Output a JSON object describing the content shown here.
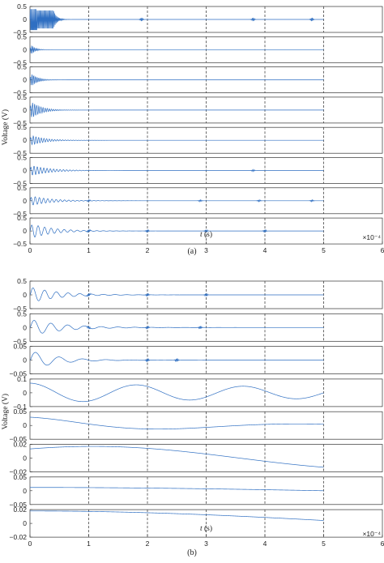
{
  "chart_data": [
    {
      "type": "line",
      "caption": "(a)",
      "xlabel_italic": "t",
      "xlabel_unit": " (s)",
      "ylabel": "Voltage (V)",
      "xlim": [
        0,
        6
      ],
      "xticks": [
        "0",
        "1",
        "2",
        "3",
        "4",
        "5",
        "6"
      ],
      "x_multiplier": "×10⁻⁴",
      "grid": "vertical-dashed",
      "series_color": "#2f6fc2",
      "signal_end_x": 5,
      "panels": [
        {
          "ylim": [
            -0.5,
            0.5
          ],
          "yticks": [
            "0.5",
            "0",
            "−0.5"
          ],
          "signal": "square-burst",
          "amplitude": 0.4,
          "decay": 0.4,
          "freq": 60,
          "echoes": [
            1.9,
            3.8,
            4.8
          ]
        },
        {
          "ylim": [
            -0.5,
            0.5
          ],
          "yticks": [
            "0.5",
            "0",
            "−0.5"
          ],
          "signal": "burst",
          "amplitude": 0.3,
          "decay": 0.06,
          "freq": 45,
          "echoes": []
        },
        {
          "ylim": [
            -0.5,
            0.5
          ],
          "yticks": [
            "0.5",
            "0",
            "−0.5"
          ],
          "signal": "burst",
          "amplitude": 0.35,
          "decay": 0.1,
          "freq": 35,
          "echoes": []
        },
        {
          "ylim": [
            -0.5,
            0.5
          ],
          "yticks": [
            "0.5",
            "0",
            "−0.5"
          ],
          "signal": "burst",
          "amplitude": 0.4,
          "decay": 0.16,
          "freq": 28,
          "echoes": []
        },
        {
          "ylim": [
            -0.5,
            0.5
          ],
          "yticks": [
            "0.5",
            "0",
            "−0.5"
          ],
          "signal": "burst",
          "amplitude": 0.22,
          "decay": 0.22,
          "freq": 22,
          "echoes": []
        },
        {
          "ylim": [
            -0.5,
            0.5
          ],
          "yticks": [
            "0.5",
            "0",
            "−0.5"
          ],
          "signal": "burst",
          "amplitude": 0.22,
          "decay": 0.3,
          "freq": 18,
          "echoes": [
            3.8
          ]
        },
        {
          "ylim": [
            -0.5,
            0.5
          ],
          "yticks": [
            "0.5",
            "0",
            "−0.5"
          ],
          "signal": "burst",
          "amplitude": 0.2,
          "decay": 0.32,
          "freq": 14,
          "echoes": [
            1.0,
            2.9,
            3.9,
            4.8
          ]
        },
        {
          "ylim": [
            -0.5,
            0.5
          ],
          "yticks": [
            "0.5",
            "0",
            "−0.5"
          ],
          "signal": "burst",
          "amplitude": 0.3,
          "decay": 0.35,
          "freq": 9,
          "echoes": [
            1.0,
            2.0,
            3.0,
            4.0
          ]
        }
      ]
    },
    {
      "type": "line",
      "caption": "(b)",
      "xlabel_italic": "t",
      "xlabel_unit": " (s)",
      "ylabel": "Voltage (V)",
      "xlim": [
        0,
        6
      ],
      "xticks": [
        "0",
        "1",
        "2",
        "3",
        "4",
        "5",
        "6"
      ],
      "x_multiplier": "×10⁻⁴",
      "grid": "vertical-dashed",
      "series_color": "#2f6fc2",
      "signal_end_x": 5,
      "panels": [
        {
          "ylim": [
            -0.5,
            0.5
          ],
          "yticks": [
            "0.5",
            "0",
            "−0.5"
          ],
          "signal": "burst",
          "amplitude": 0.3,
          "decay": 0.45,
          "freq": 5,
          "echoes": [
            1.0,
            2.0,
            3.0
          ]
        },
        {
          "ylim": [
            -0.5,
            0.5
          ],
          "yticks": [
            "0.5",
            "0",
            "−0.5"
          ],
          "signal": "burst",
          "amplitude": 0.3,
          "decay": 0.55,
          "freq": 3.5,
          "echoes": [
            1.0,
            2.0,
            2.9
          ]
        },
        {
          "ylim": [
            -0.05,
            0.05
          ],
          "yticks": [
            "0.05",
            "0",
            "−0.05"
          ],
          "signal": "burst",
          "amplitude": 0.035,
          "decay": 0.45,
          "freq": 2.5,
          "echoes": [
            2.0,
            2.5
          ]
        },
        {
          "ylim": [
            -0.1,
            0.1
          ],
          "yticks": [
            "0.1",
            "0",
            "−0.1"
          ],
          "signal": "slow",
          "amplitude": 0.07,
          "decay": 0.35,
          "freq": 1.1,
          "phase": 1.571,
          "offset": 0
        },
        {
          "ylim": [
            -0.05,
            0.05
          ],
          "yticks": [
            "0.05",
            "0",
            "−0.05"
          ],
          "signal": "slow",
          "amplitude": 0.03,
          "decay": 1.2,
          "freq": 0.42,
          "phase": 1.571,
          "offset": 0
        },
        {
          "ylim": [
            -0.02,
            0.02
          ],
          "yticks": [
            "0.02",
            "0",
            "−0.02"
          ],
          "signal": "slow",
          "amplitude": 0.017,
          "decay": 0,
          "freq": 0.2,
          "phase": 0.9,
          "offset": 0
        },
        {
          "ylim": [
            -0.05,
            0.05
          ],
          "yticks": [
            "0.05",
            "0",
            "−0.05"
          ],
          "signal": "slow",
          "amplitude": 0.012,
          "decay": 0,
          "freq": 0.1,
          "phase": 1.571,
          "offset": 0
        },
        {
          "ylim": [
            -0.02,
            0.02
          ],
          "yticks": [
            "0.02",
            "0",
            "−0.02"
          ],
          "signal": "slow",
          "amplitude": 0.018,
          "decay": 0,
          "freq": 0.085,
          "phase": 1.571,
          "offset": 0
        }
      ]
    }
  ]
}
